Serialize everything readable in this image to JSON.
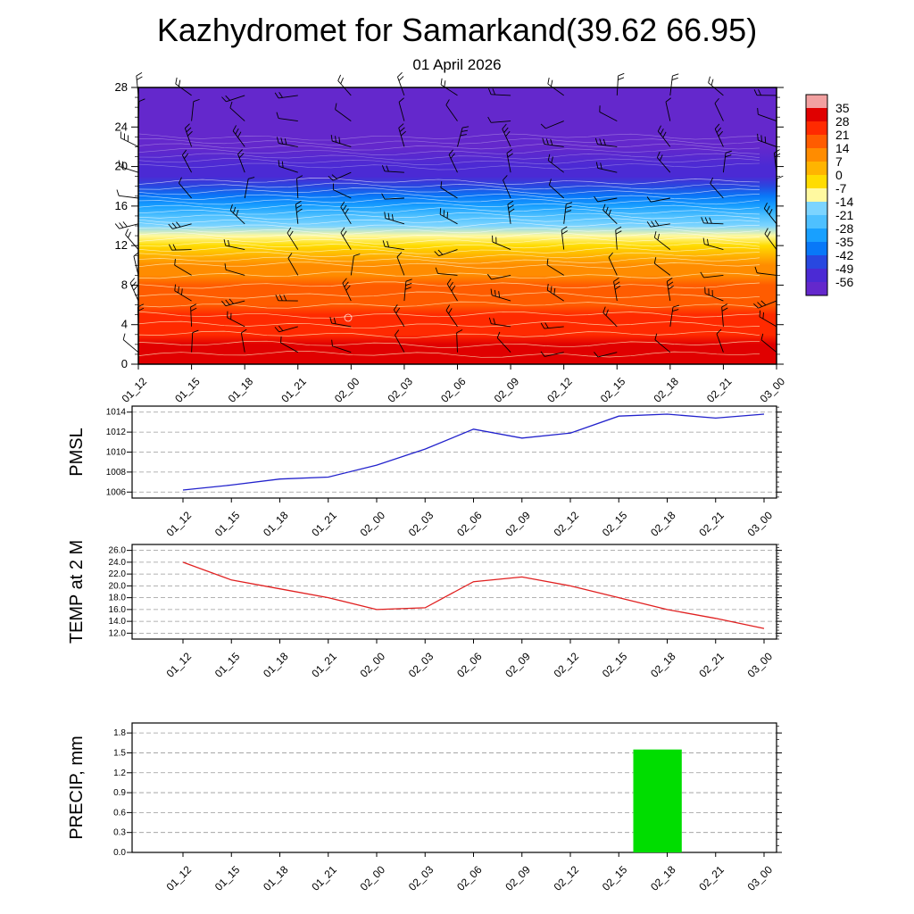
{
  "title": "Kazhydromet for Samarkand(39.62 66.95)",
  "subtitle": "01 April 2026",
  "chart_data": [
    {
      "type": "heatmap",
      "name": "temperature-cross-section",
      "description": "Time-height temperature cross-section with wind barbs",
      "x_labels": [
        "01_12",
        "01_15",
        "01_18",
        "01_21",
        "02_00",
        "02_03",
        "02_06",
        "02_09",
        "02_12",
        "02_15",
        "02_18",
        "02_21",
        "03_00"
      ],
      "y_ticks": [
        0,
        4,
        8,
        12,
        16,
        20,
        24,
        28
      ],
      "y_range": [
        0,
        28
      ],
      "profile": {
        "heights": [
          0,
          1,
          2,
          3,
          4,
          5,
          6,
          7,
          8,
          9,
          10,
          11,
          12,
          13,
          14,
          15,
          16,
          17,
          18,
          19,
          20,
          22,
          24,
          26,
          28
        ],
        "temps_c": [
          31,
          30,
          28.5,
          27,
          25,
          23,
          21,
          18.5,
          16,
          12,
          8,
          3,
          -3,
          -10,
          -18,
          -24,
          -30,
          -37,
          -44,
          -50,
          -54,
          -56.5,
          -57,
          -57,
          -56.5
        ]
      },
      "colorbar": {
        "boundaries": [
          35,
          28,
          21,
          14,
          7,
          0,
          -7,
          -14,
          -21,
          -28,
          -35,
          -42,
          -49,
          -56
        ],
        "colors": [
          "#f2a0a0",
          "#e00000",
          "#ff2a00",
          "#ff5c00",
          "#ff8c00",
          "#ffb400",
          "#ffdc00",
          "#fff9a0",
          "#7cd4ff",
          "#4ec0ff",
          "#18a0ff",
          "#0878f8",
          "#2848e0",
          "#4b2ad4",
          "#6428cc"
        ]
      }
    },
    {
      "type": "line",
      "name": "pmsl",
      "label": "PMSL",
      "color": "#2222cc",
      "x_labels": [
        "01_12",
        "01_15",
        "01_18",
        "01_21",
        "02_00",
        "02_03",
        "02_06",
        "02_09",
        "02_12",
        "02_15",
        "02_18",
        "02_21",
        "03_00"
      ],
      "values": [
        1006.2,
        1006.7,
        1007.3,
        1007.5,
        1008.7,
        1010.3,
        1012.3,
        1011.4,
        1011.9,
        1013.6,
        1013.8,
        1013.4,
        1013.8
      ],
      "y_ticks": [
        "1006",
        "1008",
        "1010",
        "1012",
        "1014"
      ],
      "y_range": [
        1005.4,
        1014.6
      ]
    },
    {
      "type": "line",
      "name": "temp2m",
      "label": "TEMP at 2 M",
      "color": "#e02020",
      "x_labels": [
        "01_12",
        "01_15",
        "01_18",
        "01_21",
        "02_00",
        "02_03",
        "02_06",
        "02_09",
        "02_12",
        "02_15",
        "02_18",
        "02_21",
        "03_00"
      ],
      "values": [
        24.0,
        21.0,
        19.5,
        18.0,
        16.0,
        16.3,
        20.7,
        21.5,
        20.0,
        18.0,
        16.0,
        14.5,
        12.8
      ],
      "y_ticks": [
        "12.0",
        "14.0",
        "16.0",
        "18.0",
        "20.0",
        "22.0",
        "24.0",
        "26.0"
      ],
      "y_range": [
        11,
        27
      ]
    },
    {
      "type": "bar",
      "name": "precip",
      "label": "PRECIP, mm",
      "color": "#00dd00",
      "x_labels": [
        "01_12",
        "01_15",
        "01_18",
        "01_21",
        "02_00",
        "02_03",
        "02_06",
        "02_09",
        "02_12",
        "02_15",
        "02_18",
        "02_21",
        "03_00"
      ],
      "values": [
        0,
        0,
        0,
        0,
        0,
        0,
        0,
        0,
        0,
        0,
        1.55,
        0,
        0
      ],
      "y_ticks": [
        "0.0",
        "0.3",
        "0.6",
        "0.9",
        "1.2",
        "1.5",
        "1.8"
      ],
      "y_range": [
        0,
        1.95
      ]
    }
  ]
}
